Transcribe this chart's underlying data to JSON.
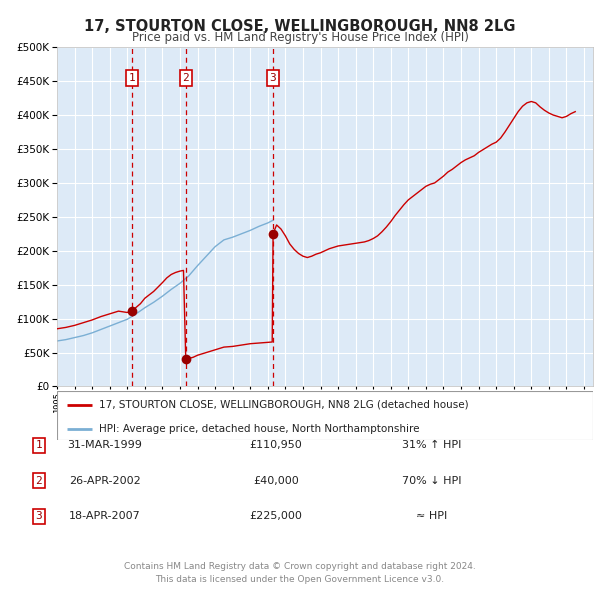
{
  "title": "17, STOURTON CLOSE, WELLINGBOROUGH, NN8 2LG",
  "subtitle": "Price paid vs. HM Land Registry's House Price Index (HPI)",
  "legend_line1": "17, STOURTON CLOSE, WELLINGBOROUGH, NN8 2LG (detached house)",
  "legend_line2": "HPI: Average price, detached house, North Northamptonshire",
  "footer_line1": "Contains HM Land Registry data © Crown copyright and database right 2024.",
  "footer_line2": "This data is licensed under the Open Government Licence v3.0.",
  "table_rows": [
    {
      "num": "1",
      "date": "31-MAR-1999",
      "price": "£110,950",
      "hpi": "31% ↑ HPI"
    },
    {
      "num": "2",
      "date": "26-APR-2002",
      "price": "£40,000",
      "hpi": "70% ↓ HPI"
    },
    {
      "num": "3",
      "date": "18-APR-2007",
      "price": "£225,000",
      "hpi": "≈ HPI"
    }
  ],
  "transaction_markers": [
    {
      "year": 1999.25,
      "value": 110950,
      "label": "1"
    },
    {
      "year": 2002.33,
      "value": 40000,
      "label": "2"
    },
    {
      "year": 2007.3,
      "value": 225000,
      "label": "3"
    }
  ],
  "vlines": [
    1999.25,
    2002.33,
    2007.3
  ],
  "ylim": [
    0,
    500000
  ],
  "xlim_start": 1995,
  "xlim_end": 2025.5,
  "price_line_color": "#cc0000",
  "hpi_line_color": "#7bafd4",
  "background_chart": "#ddeaf7",
  "grid_color": "#ffffff",
  "vline_color": "#cc0000",
  "marker_color": "#990000",
  "title_fontsize": 10,
  "subtitle_fontsize": 8.5,
  "axis_fontsize": 7
}
